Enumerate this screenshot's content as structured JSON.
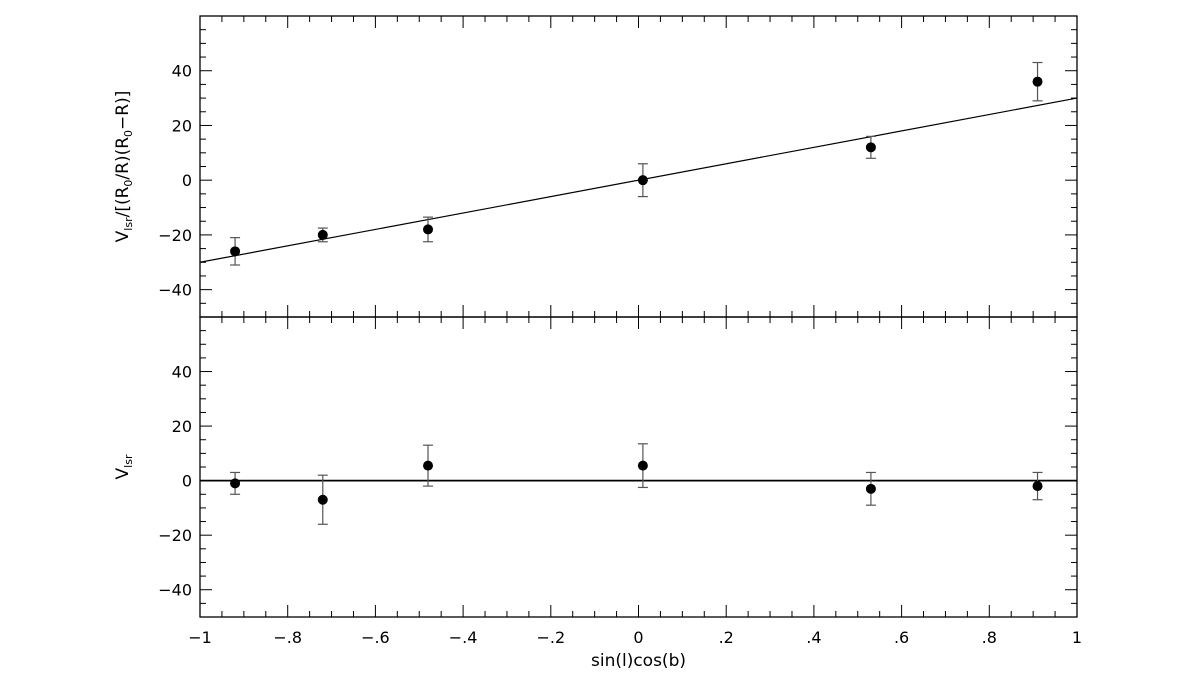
{
  "chart_data": [
    {
      "panel": "top",
      "type": "scatter",
      "ylabel": {
        "main": "V",
        "sub": "lsr",
        "rest": "/[(R",
        "sub2": "0",
        "rest2": "/R)(R",
        "sub3": "0",
        "rest3": "−R)]"
      },
      "xlim": [
        -1,
        1
      ],
      "ylim": [
        -50,
        60
      ],
      "yticks": [
        -40,
        -20,
        0,
        20,
        40
      ],
      "ytick_labels": [
        "−40",
        "−20",
        "0",
        "20",
        "40"
      ],
      "points": [
        {
          "x": -0.92,
          "y": -26,
          "err": 5
        },
        {
          "x": -0.72,
          "y": -20,
          "err": 2.5
        },
        {
          "x": -0.48,
          "y": -18,
          "err": 4.5
        },
        {
          "x": 0.01,
          "y": 0,
          "err": 6
        },
        {
          "x": 0.53,
          "y": 12,
          "err": 4
        },
        {
          "x": 0.91,
          "y": 36,
          "err": 7
        }
      ],
      "fit_line": {
        "x": [
          -1,
          1
        ],
        "y": [
          -30,
          30
        ]
      }
    },
    {
      "panel": "bottom",
      "type": "scatter",
      "ylabel": {
        "main": "V",
        "sub": "lsr"
      },
      "xlabel": "sin(l)cos(b)",
      "xlim": [
        -1,
        1
      ],
      "ylim": [
        -50,
        60
      ],
      "xticks": [
        -1,
        -0.8,
        -0.6,
        -0.4,
        -0.2,
        0,
        0.2,
        0.4,
        0.6,
        0.8,
        1
      ],
      "xtick_labels": [
        "−1",
        "−.8",
        "−.6",
        "−.4",
        "−.2",
        "0",
        ".2",
        ".4",
        ".6",
        ".8",
        "1"
      ],
      "yticks": [
        -40,
        -20,
        0,
        20,
        40
      ],
      "ytick_labels": [
        "−40",
        "−20",
        "0",
        "20",
        "40"
      ],
      "points": [
        {
          "x": -0.92,
          "y": -1,
          "err": 4
        },
        {
          "x": -0.72,
          "y": -7,
          "err": 9
        },
        {
          "x": -0.48,
          "y": 5.5,
          "err": 7.5
        },
        {
          "x": 0.01,
          "y": 5.5,
          "err": 8
        },
        {
          "x": 0.53,
          "y": -3,
          "err": 6
        },
        {
          "x": 0.91,
          "y": -2,
          "err": 5
        }
      ],
      "zero_line": 0
    }
  ]
}
